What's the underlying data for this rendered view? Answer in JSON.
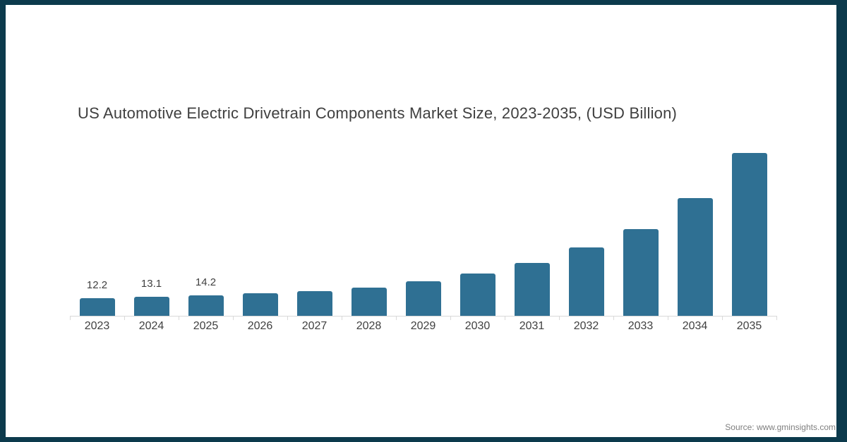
{
  "chart_data": {
    "type": "bar",
    "title": "US Automotive Electric Drivetrain Components Market Size, 2023-2035, (USD Billion)",
    "unit": "USD Billion",
    "categories": [
      "2023",
      "2024",
      "2025",
      "2026",
      "2027",
      "2028",
      "2029",
      "2030",
      "2031",
      "2032",
      "2033",
      "2034",
      "2035"
    ],
    "values": [
      12.2,
      13.1,
      14.2,
      15.6,
      17.2,
      19.6,
      23.9,
      29.3,
      36.6,
      47.3,
      60.0,
      81.5,
      112.7
    ],
    "data_labels": [
      "12.2",
      "13.1",
      "14.2",
      "",
      "",
      "",
      "",
      "",
      "",
      "",
      "",
      "",
      ""
    ],
    "xlabel": "",
    "ylabel": "",
    "ylim": [
      0,
      115
    ],
    "grid": false,
    "legend": false,
    "y_axis_shown": false,
    "colors": {
      "bar": "#2F7093",
      "axis": "#D9D9D9",
      "title": "#3F3F3F",
      "labels": "#404040",
      "frame_border": "#0C3A4C",
      "background": "#FFFFFF",
      "source": "#7F7F7F"
    }
  },
  "source": {
    "text": "Source: www.gminsights.com"
  }
}
